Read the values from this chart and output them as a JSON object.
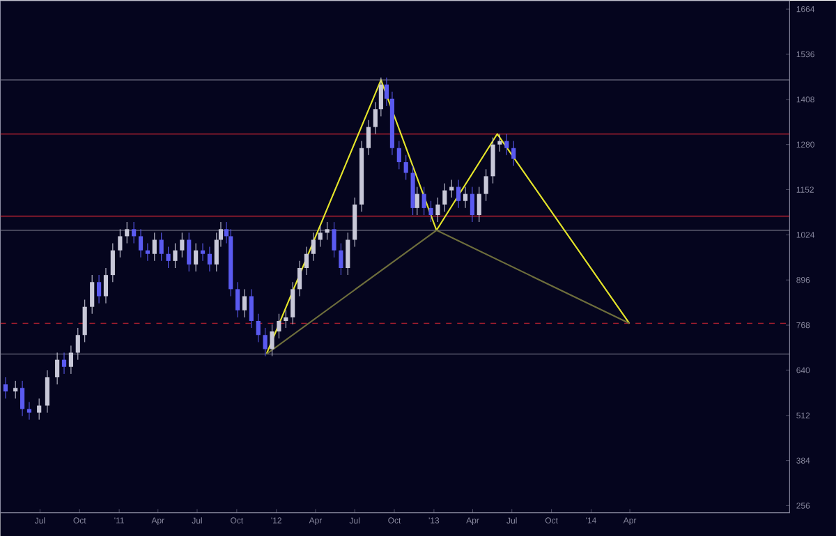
{
  "chart_data": {
    "type": "candlestick",
    "x": [
      "2010-04-12",
      "2010-05-05",
      "2010-05-21",
      "2010-06-06",
      "2010-06-29",
      "2010-07-18",
      "2010-08-10",
      "2010-08-26",
      "2010-09-11",
      "2010-09-27",
      "2010-10-13",
      "2010-10-30",
      "2010-11-15",
      "2010-12-01",
      "2010-12-17",
      "2011-01-03",
      "2011-01-19",
      "2011-02-04",
      "2011-02-20",
      "2011-03-08",
      "2011-03-24",
      "2011-04-09",
      "2011-04-25",
      "2011-05-11",
      "2011-05-27",
      "2011-06-12",
      "2011-06-28",
      "2011-07-14",
      "2011-07-30",
      "2011-08-15",
      "2011-08-25",
      "2011-09-07",
      "2011-09-17",
      "2011-10-03",
      "2011-10-19",
      "2011-11-04",
      "2011-11-20",
      "2011-12-06",
      "2011-12-22",
      "2012-01-07",
      "2012-01-23",
      "2012-02-08",
      "2012-02-24",
      "2012-03-11",
      "2012-03-27",
      "2012-04-12",
      "2012-04-28",
      "2012-05-14",
      "2012-05-30",
      "2012-06-15",
      "2012-07-01",
      "2012-07-17",
      "2012-08-02",
      "2012-08-18",
      "2012-08-31",
      "2012-09-13",
      "2012-09-26",
      "2012-10-12",
      "2012-10-28",
      "2012-11-13",
      "2012-11-23",
      "2012-12-09",
      "2012-12-25",
      "2013-01-10",
      "2013-01-26",
      "2013-02-11",
      "2013-02-27",
      "2013-03-15",
      "2013-03-31",
      "2013-04-16",
      "2013-05-02",
      "2013-05-18",
      "2013-06-03",
      "2013-06-19",
      "2013-07-05"
    ],
    "ohlc": [
      [
        600,
        620,
        560,
        580
      ],
      [
        580,
        610,
        560,
        590
      ],
      [
        590,
        610,
        510,
        530
      ],
      [
        530,
        550,
        500,
        520
      ],
      [
        520,
        560,
        500,
        540
      ],
      [
        540,
        640,
        520,
        620
      ],
      [
        620,
        690,
        600,
        670
      ],
      [
        670,
        690,
        630,
        650
      ],
      [
        650,
        710,
        630,
        690
      ],
      [
        690,
        760,
        670,
        740
      ],
      [
        740,
        840,
        720,
        820
      ],
      [
        820,
        910,
        800,
        890
      ],
      [
        890,
        910,
        830,
        850
      ],
      [
        850,
        930,
        830,
        910
      ],
      [
        910,
        1000,
        890,
        980
      ],
      [
        980,
        1040,
        960,
        1020
      ],
      [
        1020,
        1060,
        1000,
        1040
      ],
      [
        1040,
        1060,
        1000,
        1020
      ],
      [
        1020,
        1040,
        960,
        980
      ],
      [
        980,
        1000,
        950,
        970
      ],
      [
        970,
        1030,
        950,
        1010
      ],
      [
        1010,
        1030,
        950,
        970
      ],
      [
        970,
        990,
        930,
        950
      ],
      [
        950,
        1000,
        930,
        980
      ],
      [
        980,
        1030,
        960,
        1010
      ],
      [
        1010,
        1030,
        920,
        940
      ],
      [
        940,
        1000,
        920,
        980
      ],
      [
        980,
        1000,
        950,
        970
      ],
      [
        970,
        990,
        920,
        940
      ],
      [
        940,
        1030,
        920,
        1010
      ],
      [
        1010,
        1060,
        990,
        1040
      ],
      [
        1040,
        1060,
        1000,
        1020
      ],
      [
        1020,
        1040,
        850,
        870
      ],
      [
        870,
        890,
        790,
        810
      ],
      [
        810,
        870,
        790,
        850
      ],
      [
        850,
        870,
        760,
        780
      ],
      [
        780,
        800,
        720,
        740
      ],
      [
        740,
        760,
        680,
        700
      ],
      [
        700,
        770,
        680,
        750
      ],
      [
        750,
        800,
        730,
        780
      ],
      [
        780,
        810,
        760,
        790
      ],
      [
        790,
        890,
        770,
        870
      ],
      [
        870,
        950,
        850,
        930
      ],
      [
        930,
        990,
        910,
        970
      ],
      [
        970,
        1030,
        950,
        1010
      ],
      [
        1010,
        1050,
        990,
        1030
      ],
      [
        1030,
        1060,
        1010,
        1040
      ],
      [
        1040,
        1060,
        960,
        980
      ],
      [
        980,
        1000,
        910,
        930
      ],
      [
        930,
        1030,
        910,
        1010
      ],
      [
        1010,
        1130,
        990,
        1110
      ],
      [
        1110,
        1290,
        1090,
        1270
      ],
      [
        1270,
        1350,
        1250,
        1330
      ],
      [
        1330,
        1400,
        1310,
        1380
      ],
      [
        1380,
        1470,
        1360,
        1450
      ],
      [
        1450,
        1470,
        1390,
        1410
      ],
      [
        1410,
        1430,
        1250,
        1270
      ],
      [
        1270,
        1290,
        1210,
        1230
      ],
      [
        1230,
        1250,
        1180,
        1200
      ],
      [
        1200,
        1220,
        1080,
        1100
      ],
      [
        1100,
        1160,
        1080,
        1140
      ],
      [
        1140,
        1160,
        1080,
        1100
      ],
      [
        1100,
        1120,
        1060,
        1080
      ],
      [
        1080,
        1130,
        1060,
        1110
      ],
      [
        1110,
        1170,
        1090,
        1150
      ],
      [
        1150,
        1180,
        1130,
        1160
      ],
      [
        1160,
        1180,
        1100,
        1120
      ],
      [
        1120,
        1160,
        1100,
        1140
      ],
      [
        1140,
        1160,
        1060,
        1080
      ],
      [
        1080,
        1160,
        1060,
        1140
      ],
      [
        1140,
        1210,
        1120,
        1190
      ],
      [
        1190,
        1300,
        1170,
        1280
      ],
      [
        1280,
        1310,
        1260,
        1290
      ],
      [
        1290,
        1310,
        1250,
        1270
      ],
      [
        1270,
        1290,
        1220,
        1240
      ]
    ],
    "colors": [
      "#5a5af0",
      "#c8c8d8",
      "#5a5af0",
      "#5a5af0",
      "#c8c8d8",
      "#c8c8d8",
      "#c8c8d8",
      "#5a5af0",
      "#c8c8d8",
      "#c8c8d8",
      "#c8c8d8",
      "#c8c8d8",
      "#5a5af0",
      "#c8c8d8",
      "#c8c8d8",
      "#c8c8d8",
      "#c8c8d8",
      "#5a5af0",
      "#5a5af0",
      "#5a5af0",
      "#c8c8d8",
      "#5a5af0",
      "#5a5af0",
      "#c8c8d8",
      "#c8c8d8",
      "#5a5af0",
      "#c8c8d8",
      "#5a5af0",
      "#5a5af0",
      "#c8c8d8",
      "#c8c8d8",
      "#5a5af0",
      "#5a5af0",
      "#5a5af0",
      "#c8c8d8",
      "#5a5af0",
      "#5a5af0",
      "#5a5af0",
      "#c8c8d8",
      "#c8c8d8",
      "#c8c8d8",
      "#c8c8d8",
      "#c8c8d8",
      "#c8c8d8",
      "#c8c8d8",
      "#c8c8d8",
      "#c8c8d8",
      "#5a5af0",
      "#5a5af0",
      "#c8c8d8",
      "#c8c8d8",
      "#c8c8d8",
      "#c8c8d8",
      "#c8c8d8",
      "#c8c8d8",
      "#5a5af0",
      "#5a5af0",
      "#5a5af0",
      "#5a5af0",
      "#5a5af0",
      "#c8c8d8",
      "#5a5af0",
      "#5a5af0",
      "#c8c8d8",
      "#c8c8d8",
      "#c8c8d8",
      "#5a5af0",
      "#c8c8d8",
      "#5a5af0",
      "#c8c8d8",
      "#c8c8d8",
      "#c8c8d8",
      "#c8c8d8",
      "#5a5af0",
      "#5a5af0"
    ],
    "series": [
      {
        "type": "line",
        "color": "#e6e62a",
        "x": [
          "2011-12-09",
          "2012-08-31",
          "2013-01-07",
          "2013-05-28",
          "2014-03-31"
        ],
        "values": [
          686,
          1463,
          1037,
          1310,
          773
        ]
      },
      {
        "type": "line",
        "color": "#6e6e3c",
        "x": [
          "2011-12-09",
          "2013-01-07",
          "2014-03-31"
        ],
        "values": [
          686,
          1037,
          773
        ]
      }
    ],
    "ref_lines": [
      {
        "axis": "y",
        "value": 1463,
        "color": "#6e6e80"
      },
      {
        "axis": "y",
        "value": 1310,
        "color": "#b02030"
      },
      {
        "axis": "y",
        "value": 1077,
        "color": "#b02030"
      },
      {
        "axis": "y",
        "value": 1037,
        "color": "#6e6e80"
      },
      {
        "axis": "y",
        "value": 773,
        "color": "#b02030",
        "line_style": "dashed"
      },
      {
        "axis": "y",
        "value": 686,
        "color": "#6e6e80"
      }
    ],
    "xlim": [
      "2010-03-31",
      "2015-04-07"
    ],
    "xticks": [
      {
        "value": "2010-07-01",
        "label": "Jul"
      },
      {
        "value": "2010-10-01",
        "label": "Oct"
      },
      {
        "value": "2011-01-01",
        "label": "'11"
      },
      {
        "value": "2011-04-01",
        "label": "Apr"
      },
      {
        "value": "2011-07-01",
        "label": "Jul"
      },
      {
        "value": "2011-10-01",
        "label": "Oct"
      },
      {
        "value": "2012-01-01",
        "label": "'12"
      },
      {
        "value": "2012-04-01",
        "label": "Apr"
      },
      {
        "value": "2012-07-01",
        "label": "Jul"
      },
      {
        "value": "2012-10-01",
        "label": "Oct"
      },
      {
        "value": "2013-01-01",
        "label": "'13"
      },
      {
        "value": "2013-04-01",
        "label": "Apr"
      },
      {
        "value": "2013-07-01",
        "label": "Jul"
      },
      {
        "value": "2013-10-01",
        "label": "Oct"
      },
      {
        "value": "2014-01-01",
        "label": "'14"
      },
      {
        "value": "2014-04-01",
        "label": "Apr"
      }
    ],
    "ylim": [
      236,
      1688
    ],
    "yticks": [
      256,
      384,
      512,
      640,
      768,
      896,
      1024,
      1152,
      1280,
      1408,
      1536,
      1664
    ]
  }
}
